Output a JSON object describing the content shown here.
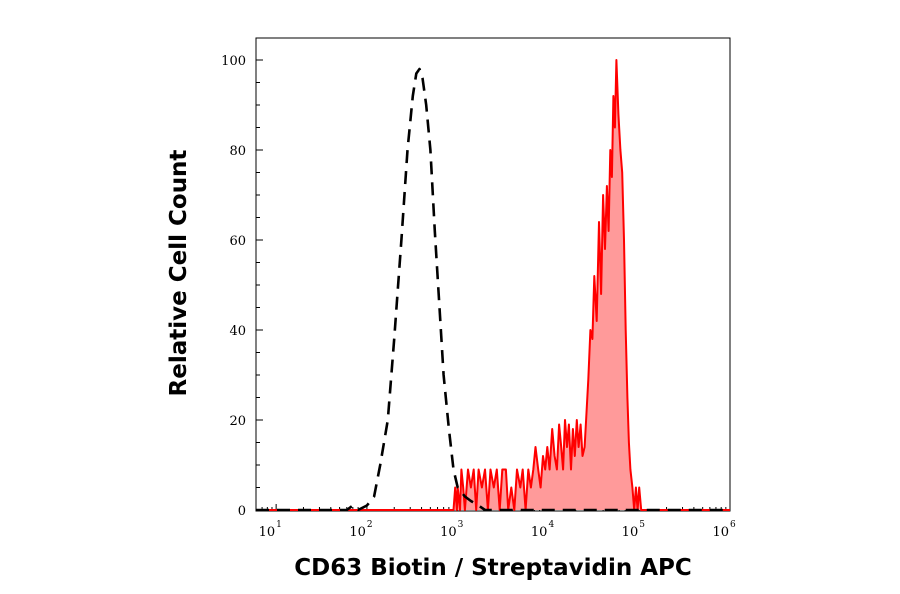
{
  "chart_data": {
    "type": "area",
    "xlabel": "CD63 Biotin / Streptavidin APC",
    "ylabel": "Relative Cell Count",
    "x_scale": "log",
    "xlim": [
      6,
      1000000
    ],
    "ylim": [
      0,
      100
    ],
    "x_ticks": [
      {
        "base": "10",
        "exp": "1",
        "value": 10
      },
      {
        "base": "10",
        "exp": "2",
        "value": 100
      },
      {
        "base": "10",
        "exp": "3",
        "value": 1000
      },
      {
        "base": "10",
        "exp": "4",
        "value": 10000
      },
      {
        "base": "10",
        "exp": "5",
        "value": 100000
      },
      {
        "base": "10",
        "exp": "6",
        "value": 1000000
      }
    ],
    "y_ticks": [
      "0",
      "20",
      "40",
      "60",
      "80",
      "100"
    ],
    "series": [
      {
        "style": "dashed",
        "color": "#000000",
        "fill": "none",
        "points": [
          [
            6,
            0
          ],
          [
            60,
            0
          ],
          [
            70,
            1
          ],
          [
            80,
            0
          ],
          [
            100,
            1
          ],
          [
            120,
            3
          ],
          [
            140,
            10
          ],
          [
            170,
            20
          ],
          [
            200,
            38
          ],
          [
            240,
            60
          ],
          [
            280,
            80
          ],
          [
            320,
            92
          ],
          [
            350,
            97
          ],
          [
            380,
            98
          ],
          [
            410,
            96
          ],
          [
            450,
            90
          ],
          [
            500,
            80
          ],
          [
            560,
            62
          ],
          [
            630,
            45
          ],
          [
            700,
            30
          ],
          [
            800,
            18
          ],
          [
            900,
            9
          ],
          [
            1000,
            5
          ],
          [
            1100,
            4
          ],
          [
            1200,
            3
          ],
          [
            1400,
            2
          ],
          [
            1700,
            1
          ],
          [
            2000,
            0
          ],
          [
            1000000,
            0
          ]
        ]
      },
      {
        "style": "solid",
        "color": "#ff0000",
        "fill": "#ff9a9a",
        "points": [
          [
            6,
            0
          ],
          [
            900,
            0
          ],
          [
            940,
            5
          ],
          [
            980,
            0
          ],
          [
            1000,
            5
          ],
          [
            1060,
            0
          ],
          [
            1100,
            9
          ],
          [
            1150,
            5
          ],
          [
            1200,
            0
          ],
          [
            1300,
            9
          ],
          [
            1400,
            5
          ],
          [
            1500,
            9
          ],
          [
            1600,
            0
          ],
          [
            1700,
            9
          ],
          [
            1850,
            5
          ],
          [
            2000,
            9
          ],
          [
            2150,
            0
          ],
          [
            2300,
            9
          ],
          [
            2500,
            5
          ],
          [
            2700,
            9
          ],
          [
            2900,
            0
          ],
          [
            3100,
            9
          ],
          [
            3400,
            9
          ],
          [
            3600,
            0
          ],
          [
            3900,
            5
          ],
          [
            4200,
            0
          ],
          [
            4500,
            9
          ],
          [
            4900,
            5
          ],
          [
            5200,
            9
          ],
          [
            5600,
            0
          ],
          [
            6000,
            9
          ],
          [
            6400,
            5
          ],
          [
            6800,
            9
          ],
          [
            7200,
            14
          ],
          [
            7700,
            9
          ],
          [
            8200,
            5
          ],
          [
            8700,
            12
          ],
          [
            9200,
            9
          ],
          [
            9700,
            14
          ],
          [
            10300,
            9
          ],
          [
            11000,
            18
          ],
          [
            11700,
            12
          ],
          [
            12400,
            9
          ],
          [
            13100,
            19
          ],
          [
            13800,
            14
          ],
          [
            14500,
            9
          ],
          [
            15200,
            20
          ],
          [
            16000,
            14
          ],
          [
            16800,
            19
          ],
          [
            17700,
            9
          ],
          [
            18600,
            18
          ],
          [
            19500,
            12
          ],
          [
            20500,
            20
          ],
          [
            21500,
            14
          ],
          [
            22600,
            19
          ],
          [
            23700,
            12
          ],
          [
            25000,
            14
          ],
          [
            26000,
            20
          ],
          [
            27500,
            29
          ],
          [
            29000,
            40
          ],
          [
            30500,
            38
          ],
          [
            32000,
            52
          ],
          [
            34000,
            42
          ],
          [
            36000,
            64
          ],
          [
            38000,
            48
          ],
          [
            40000,
            70
          ],
          [
            42000,
            58
          ],
          [
            44000,
            72
          ],
          [
            46000,
            62
          ],
          [
            48000,
            80
          ],
          [
            50000,
            74
          ],
          [
            52000,
            92
          ],
          [
            54000,
            85
          ],
          [
            56000,
            100
          ],
          [
            59000,
            88
          ],
          [
            62000,
            80
          ],
          [
            65000,
            75
          ],
          [
            68000,
            60
          ],
          [
            71000,
            40
          ],
          [
            74000,
            25
          ],
          [
            77000,
            15
          ],
          [
            80000,
            9
          ],
          [
            84000,
            5
          ],
          [
            88000,
            0
          ],
          [
            92000,
            5
          ],
          [
            96000,
            0
          ],
          [
            100000,
            5
          ],
          [
            105000,
            0
          ],
          [
            1000000,
            0
          ]
        ]
      }
    ]
  }
}
